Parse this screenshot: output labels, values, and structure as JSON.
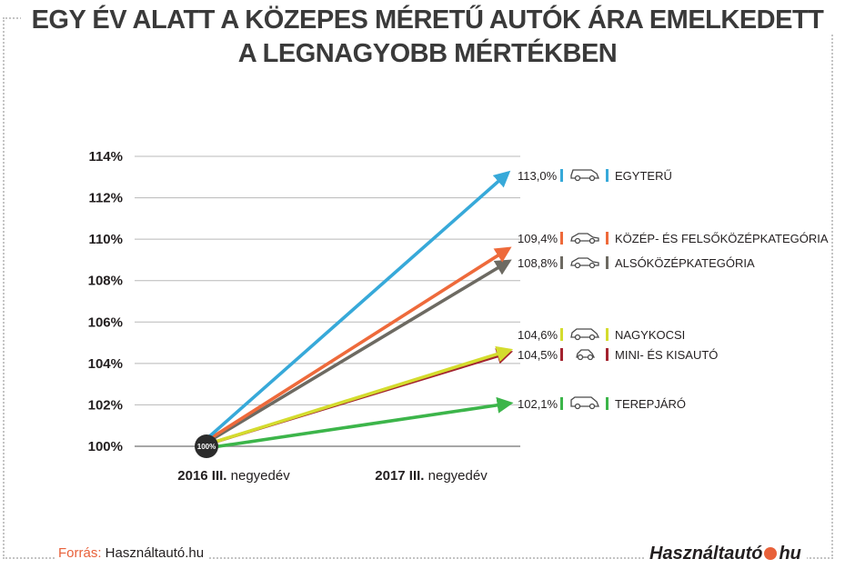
{
  "title": {
    "line1": "EGY ÉV ALATT A KÖZEPES MÉRETŰ AUTÓK ÁRA EMELKEDETT",
    "line2": "A LEGNAGYOBB MÉRTÉKBEN"
  },
  "chart_data": {
    "type": "line",
    "x": [
      "2016 III. negyedév",
      "2017 III. negyedév"
    ],
    "x_labels": [
      {
        "bold": "2016 III.",
        "normal": " negyedév"
      },
      {
        "bold": "2017 III.",
        "normal": " negyedév"
      }
    ],
    "ylim": [
      100,
      114
    ],
    "y_ticks": [
      "100%",
      "102%",
      "104%",
      "106%",
      "108%",
      "110%",
      "112%",
      "114%"
    ],
    "y_tick_values": [
      100,
      102,
      104,
      106,
      108,
      110,
      112,
      114
    ],
    "grid": true,
    "origin_label": "100%",
    "series": [
      {
        "name": "EGYTERŰ",
        "values": [
          100,
          113.0
        ],
        "label": "113,0%",
        "color": "#37a9d9",
        "icon": "minivan-icon"
      },
      {
        "name": "KÖZÉP- ÉS FELSŐKÖZÉPKATEGÓRIA",
        "values": [
          100,
          109.4
        ],
        "label": "109,4%",
        "color": "#ee6a3b",
        "icon": "sedan-icon"
      },
      {
        "name": "ALSÓKÖZÉPKATEGÓRIA",
        "values": [
          100,
          108.8
        ],
        "label": "108,8%",
        "color": "#6d6a62",
        "icon": "compact-car-icon"
      },
      {
        "name": "NAGYKOCSI",
        "values": [
          100,
          104.6
        ],
        "label": "104,6%",
        "color": "#d4dc2e",
        "icon": "estate-car-icon"
      },
      {
        "name": "MINI- ÉS KISAUTÓ",
        "values": [
          100,
          104.5
        ],
        "label": "104,5%",
        "color": "#a3232f",
        "icon": "mini-car-icon"
      },
      {
        "name": "TEREPJÁRÓ",
        "values": [
          100,
          102.1
        ],
        "label": "102,1%",
        "color": "#3cb54a",
        "icon": "suv-icon"
      }
    ]
  },
  "footer": {
    "source_label": "Forrás:",
    "source_value": " Használtautó.hu",
    "brand_name": "Használtautó",
    "brand_tld": "hu"
  }
}
